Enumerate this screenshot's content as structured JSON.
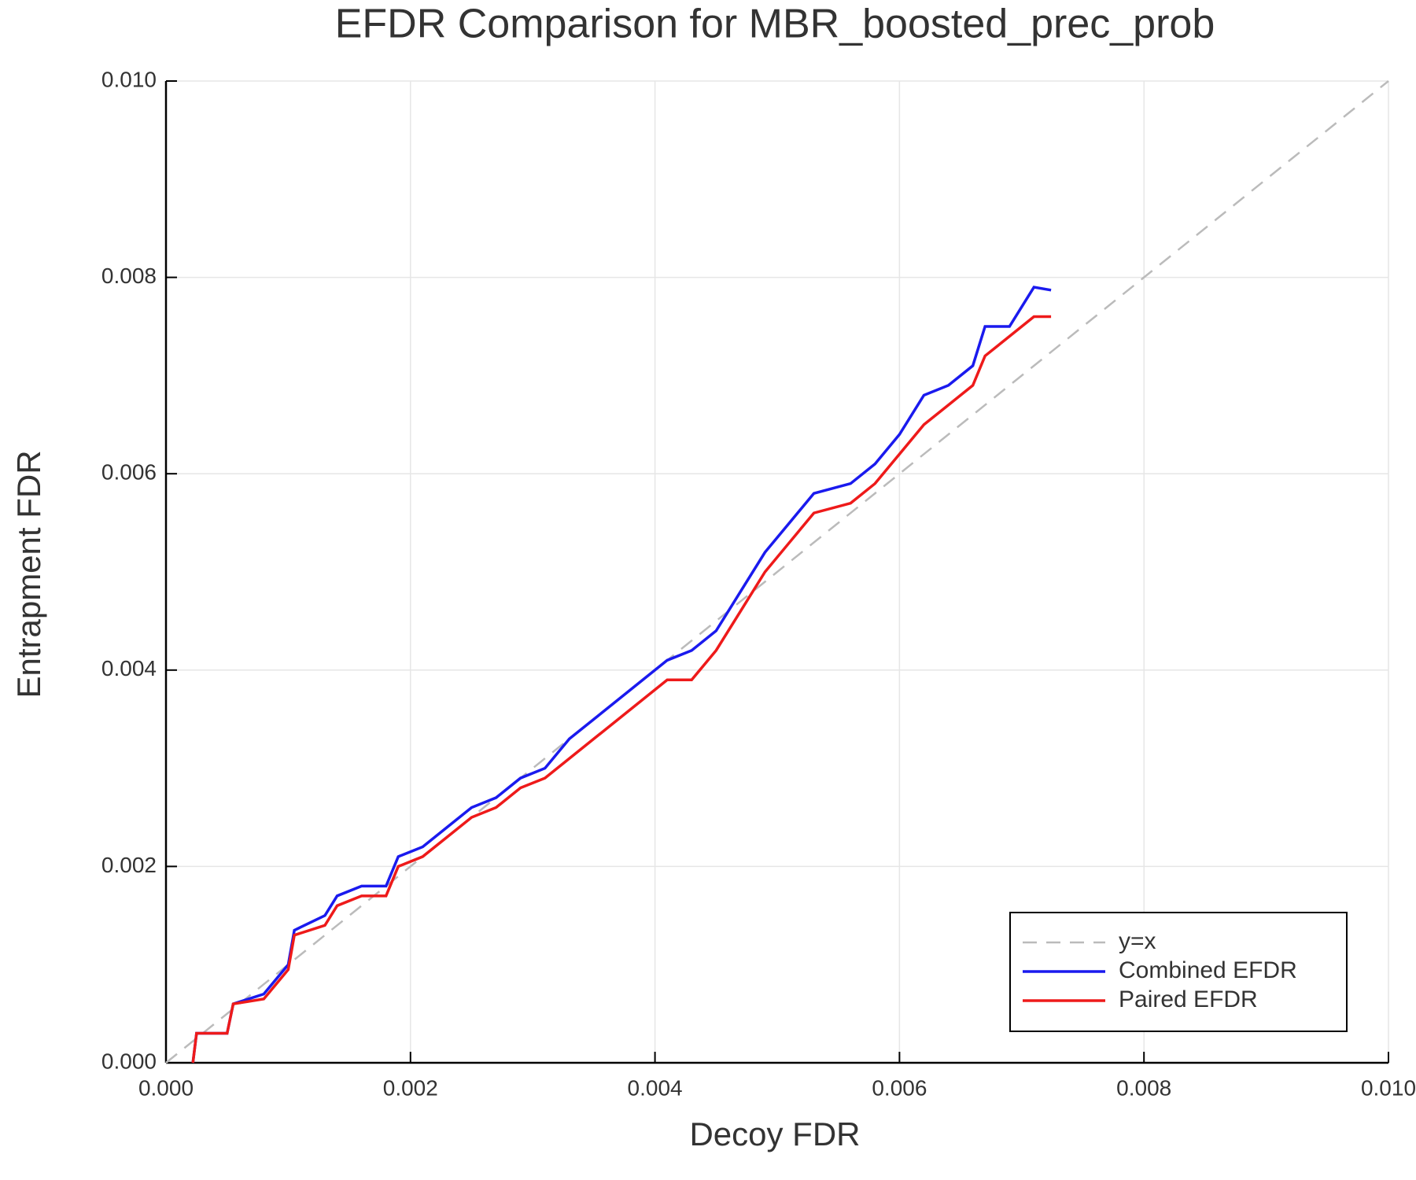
{
  "chart_data": {
    "type": "line",
    "title": "EFDR Comparison for MBR_boosted_prec_prob",
    "x_label": "Decoy FDR",
    "y_label": "Entrapment FDR",
    "xlim": [
      0,
      0.01
    ],
    "ylim": [
      0,
      0.01
    ],
    "xticks": [
      {
        "value": 0,
        "label": "0.000"
      },
      {
        "value": 0.002,
        "label": "0.002"
      },
      {
        "value": 0.004,
        "label": "0.004"
      },
      {
        "value": 0.006,
        "label": "0.006"
      },
      {
        "value": 0.008,
        "label": "0.008"
      },
      {
        "value": 0.01,
        "label": "0.010"
      }
    ],
    "yticks": [
      {
        "value": 0,
        "label": "0.000"
      },
      {
        "value": 0.002,
        "label": "0.002"
      },
      {
        "value": 0.004,
        "label": "0.004"
      },
      {
        "value": 0.006,
        "label": "0.006"
      },
      {
        "value": 0.008,
        "label": "0.008"
      },
      {
        "value": 0.01,
        "label": "0.010"
      }
    ],
    "grid": true,
    "legend": "lower right",
    "series": [
      {
        "name": "y=x",
        "color": "#bbbbbb",
        "dash": true,
        "x": [
          0,
          0.01
        ],
        "values": [
          0,
          0.01
        ]
      },
      {
        "name": "Combined EFDR",
        "color": "#1a1aee",
        "dash": false,
        "x": [
          0.00022,
          0.00025,
          0.0005,
          0.00055,
          0.0008,
          0.001,
          0.00105,
          0.0013,
          0.0014,
          0.0016,
          0.0018,
          0.0019,
          0.0021,
          0.0023,
          0.0025,
          0.0027,
          0.0029,
          0.0031,
          0.0033,
          0.0035,
          0.0037,
          0.0039,
          0.0041,
          0.0043,
          0.0045,
          0.0047,
          0.0049,
          0.0051,
          0.0053,
          0.0056,
          0.0058,
          0.006,
          0.0062,
          0.0064,
          0.0066,
          0.0067,
          0.0069,
          0.0071,
          0.00724
        ],
        "values": [
          0,
          0.0003,
          0.0003,
          0.0006,
          0.0007,
          0.001,
          0.00135,
          0.0015,
          0.0017,
          0.0018,
          0.0018,
          0.0021,
          0.0022,
          0.0024,
          0.0026,
          0.0027,
          0.0029,
          0.003,
          0.0033,
          0.0035,
          0.0037,
          0.0039,
          0.0041,
          0.0042,
          0.0044,
          0.0048,
          0.0052,
          0.0055,
          0.0058,
          0.0059,
          0.0061,
          0.0064,
          0.0068,
          0.0069,
          0.0071,
          0.0075,
          0.0075,
          0.0079,
          0.00787
        ]
      },
      {
        "name": "Paired EFDR",
        "color": "#ee1a1a",
        "dash": false,
        "x": [
          0.00022,
          0.00025,
          0.0005,
          0.00055,
          0.0008,
          0.001,
          0.00105,
          0.0013,
          0.0014,
          0.0016,
          0.0018,
          0.0019,
          0.0021,
          0.0023,
          0.0025,
          0.0027,
          0.0029,
          0.0031,
          0.0033,
          0.0035,
          0.0037,
          0.0039,
          0.0041,
          0.0043,
          0.0045,
          0.0047,
          0.0049,
          0.0051,
          0.0053,
          0.0056,
          0.0058,
          0.006,
          0.0062,
          0.0064,
          0.0066,
          0.0067,
          0.0069,
          0.0071,
          0.00724
        ],
        "values": [
          0,
          0.0003,
          0.0003,
          0.0006,
          0.00065,
          0.00095,
          0.0013,
          0.0014,
          0.0016,
          0.0017,
          0.0017,
          0.002,
          0.0021,
          0.0023,
          0.0025,
          0.0026,
          0.0028,
          0.0029,
          0.0031,
          0.0033,
          0.0035,
          0.0037,
          0.0039,
          0.0039,
          0.0042,
          0.0046,
          0.005,
          0.0053,
          0.0056,
          0.0057,
          0.0059,
          0.0062,
          0.0065,
          0.0067,
          0.0069,
          0.0072,
          0.0074,
          0.0076,
          0.0076
        ]
      }
    ]
  }
}
